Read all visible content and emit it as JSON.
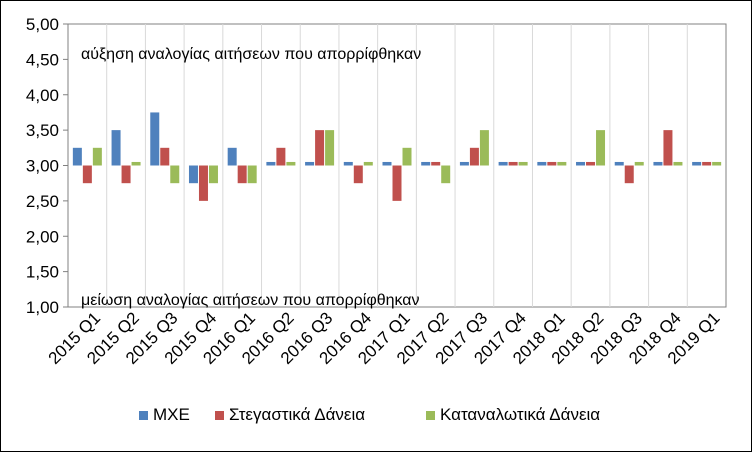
{
  "chart_data": {
    "type": "bar",
    "categories": [
      "2015 Q1",
      "2015 Q2",
      "2015 Q3",
      "2015 Q4",
      "2016 Q1",
      "2016 Q2",
      "2016 Q3",
      "2016 Q4",
      "2017 Q1",
      "2017 Q2",
      "2017 Q3",
      "2017 Q4",
      "2018 Q1",
      "2018 Q2",
      "2018 Q3",
      "2018 Q4",
      "2019 Q1"
    ],
    "series": [
      {
        "name": "ΜΧΕ",
        "color": "#4F81BD",
        "values": [
          3.25,
          3.5,
          3.75,
          2.75,
          3.25,
          3.05,
          3.05,
          3.05,
          3.05,
          3.05,
          3.05,
          3.05,
          3.05,
          3.05,
          3.05,
          3.05,
          3.05
        ]
      },
      {
        "name": "Στεγαστικά Δάνεια",
        "color": "#C0504D",
        "values": [
          2.75,
          2.75,
          3.25,
          2.5,
          2.75,
          3.25,
          3.5,
          2.75,
          2.5,
          3.05,
          3.25,
          3.05,
          3.05,
          3.05,
          2.75,
          3.5,
          3.05
        ]
      },
      {
        "name": "Καταναλωτικά Δάνεια",
        "color": "#9BBB59",
        "values": [
          3.25,
          3.05,
          2.75,
          2.75,
          2.75,
          3.05,
          3.5,
          3.05,
          3.25,
          2.75,
          3.5,
          3.05,
          3.05,
          3.5,
          3.05,
          3.05,
          3.05
        ]
      }
    ],
    "baseline": 3.0,
    "ylim": [
      1.0,
      5.0
    ],
    "yticks": [
      "1,00",
      "1,50",
      "2,00",
      "2,50",
      "3,00",
      "3,50",
      "4,00",
      "4,50",
      "5,00"
    ],
    "ytick_values": [
      1.0,
      1.5,
      2.0,
      2.5,
      3.0,
      3.5,
      4.0,
      4.5,
      5.0
    ],
    "grid": "vertical",
    "legend_position": "bottom",
    "annotations": {
      "top": "αύξηση αναλογίας αιτήσεων που απορρίφθηκαν",
      "bottom": "μείωση αναλογίας αιτήσεων που απορρίφθηκαν"
    }
  }
}
